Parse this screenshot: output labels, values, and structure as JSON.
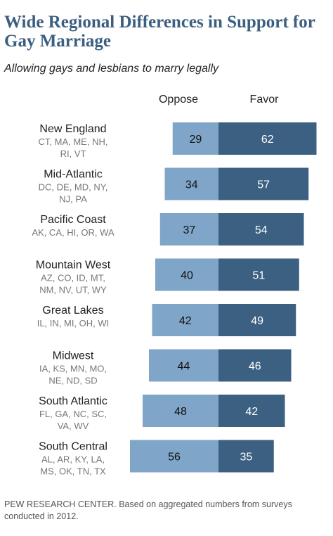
{
  "title": "Wide Regional Differences in Support for Gay Marriage",
  "subtitle": "Allowing gays and lesbians to marry legally",
  "footer": "PEW RESEARCH CENTER. Based on aggregated numbers from surveys conducted in 2012.",
  "colors": {
    "oppose": "#7fa5c8",
    "favor": "#3c6081",
    "title": "#3b5f80"
  },
  "chart_data": {
    "type": "bar",
    "orientation": "horizontal-diverging",
    "series_headers": [
      "Oppose",
      "Favor"
    ],
    "categories": [
      {
        "name": "New England",
        "states": [
          "CT, MA, ME, NH,",
          "RI, VT"
        ]
      },
      {
        "name": "Mid-Atlantic",
        "states": [
          "DC, DE, MD, NY,",
          "NJ, PA"
        ]
      },
      {
        "name": "Pacific Coast",
        "states": [
          "AK, CA, HI, OR, WA"
        ]
      },
      {
        "name": "Mountain West",
        "states": [
          "AZ, CO, ID, MT,",
          "NM, NV, UT, WY"
        ]
      },
      {
        "name": "Great Lakes",
        "states": [
          "IL, IN, MI, OH, WI"
        ]
      },
      {
        "name": "Midwest",
        "states": [
          "IA, KS, MN, MO,",
          "NE, ND, SD"
        ]
      },
      {
        "name": "South Atlantic",
        "states": [
          "FL, GA, NC, SC,",
          "VA, WV"
        ]
      },
      {
        "name": "South Central",
        "states": [
          "AL, AR, KY, LA,",
          "MS, OK, TN, TX"
        ]
      }
    ],
    "series": [
      {
        "name": "Oppose",
        "values": [
          29,
          34,
          37,
          40,
          42,
          44,
          48,
          56
        ]
      },
      {
        "name": "Favor",
        "values": [
          62,
          57,
          54,
          51,
          49,
          46,
          42,
          35
        ]
      }
    ],
    "unit": "percent"
  }
}
